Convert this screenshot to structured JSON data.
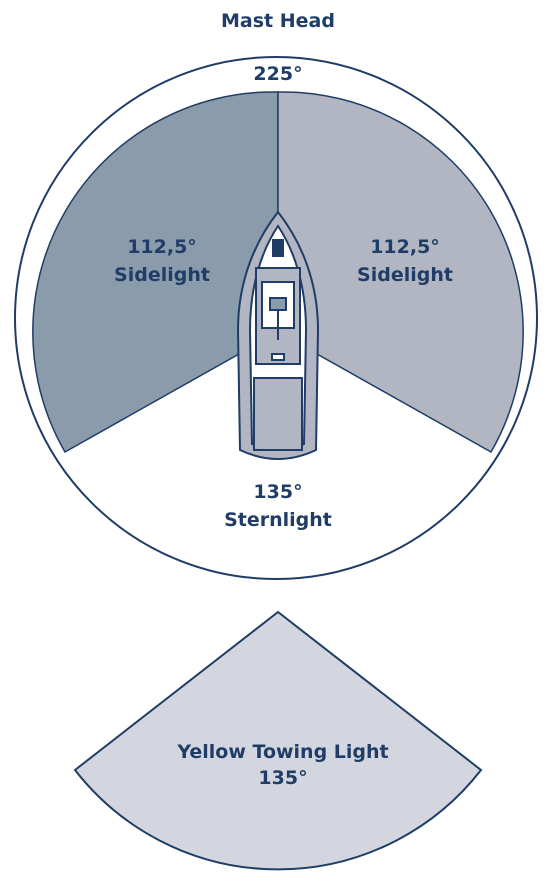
{
  "title": "Mast Head",
  "mast_head": {
    "angle": "225°"
  },
  "sectors": [
    {
      "angle": "112,5°",
      "name": "Sidelight"
    },
    {
      "angle": "112,5°",
      "name": "Sidelight"
    },
    {
      "angle": "135°",
      "name": "Sternlight"
    }
  ],
  "towing_light": {
    "name": "Yellow Towing Light",
    "angle": "135°"
  }
}
